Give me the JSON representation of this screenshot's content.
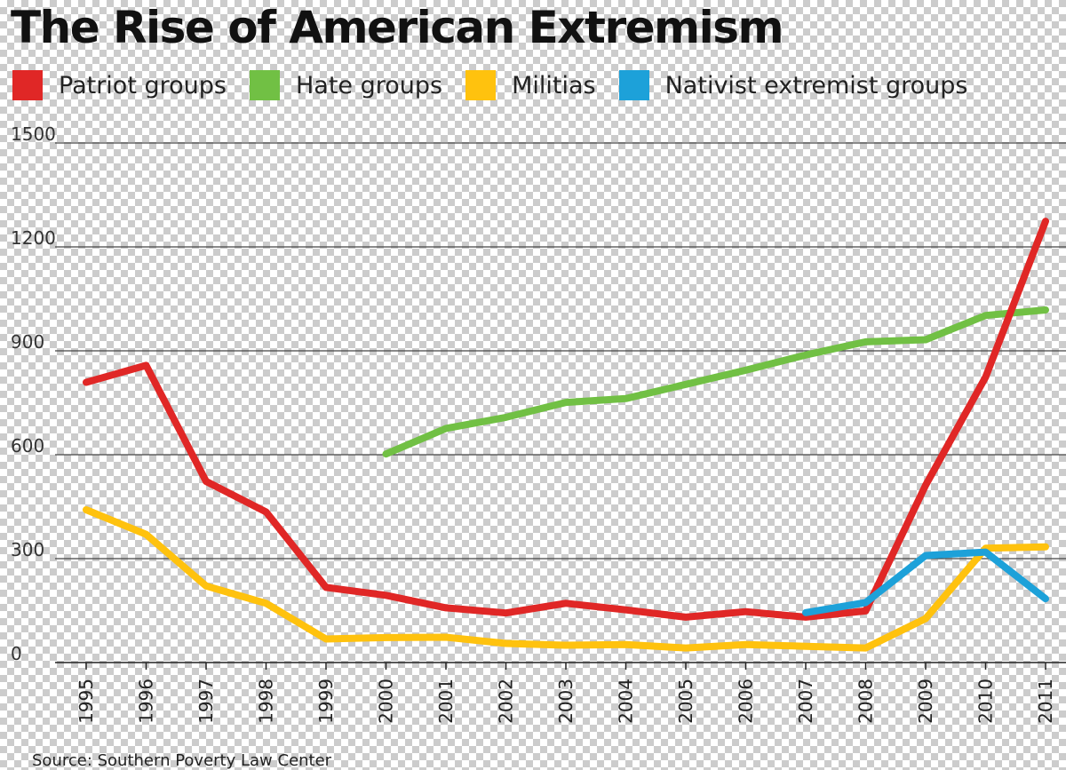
{
  "chart_data": {
    "type": "line",
    "title": "The Rise of American Extremism",
    "source": "Source: Southern Poverty Law Center",
    "x": [
      "1995",
      "1996",
      "1997",
      "1998",
      "1999",
      "2000",
      "2001",
      "2002",
      "2003",
      "2004",
      "2005",
      "2006",
      "2007",
      "2008",
      "2009",
      "2010",
      "2011"
    ],
    "ylim": [
      0,
      1500
    ],
    "yticks": [
      0,
      300,
      600,
      900,
      1200,
      1500
    ],
    "xlabel": "",
    "ylabel": "",
    "grid": true,
    "legend_position": "top",
    "series": [
      {
        "name": "Patriot groups",
        "color": "#e02726",
        "values": [
          809,
          858,
          523,
          435,
          217,
          194,
          158,
          143,
          171,
          152,
          131,
          147,
          131,
          149,
          512,
          824,
          1274
        ]
      },
      {
        "name": "Hate groups",
        "color": "#71c044",
        "values": [
          null,
          null,
          null,
          null,
          null,
          602,
          676,
          708,
          751,
          762,
          803,
          844,
          888,
          926,
          932,
          1002,
          1018
        ]
      },
      {
        "name": "Militias",
        "color": "#ffc20e",
        "values": [
          441,
          370,
          221,
          171,
          68,
          72,
          73,
          55,
          50,
          52,
          42,
          52,
          47,
          42,
          127,
          330,
          334
        ]
      },
      {
        "name": "Nativist extremist groups",
        "color": "#1da1d9",
        "values": [
          null,
          null,
          null,
          null,
          null,
          null,
          null,
          null,
          null,
          null,
          null,
          null,
          144,
          173,
          309,
          319,
          184
        ]
      }
    ]
  }
}
